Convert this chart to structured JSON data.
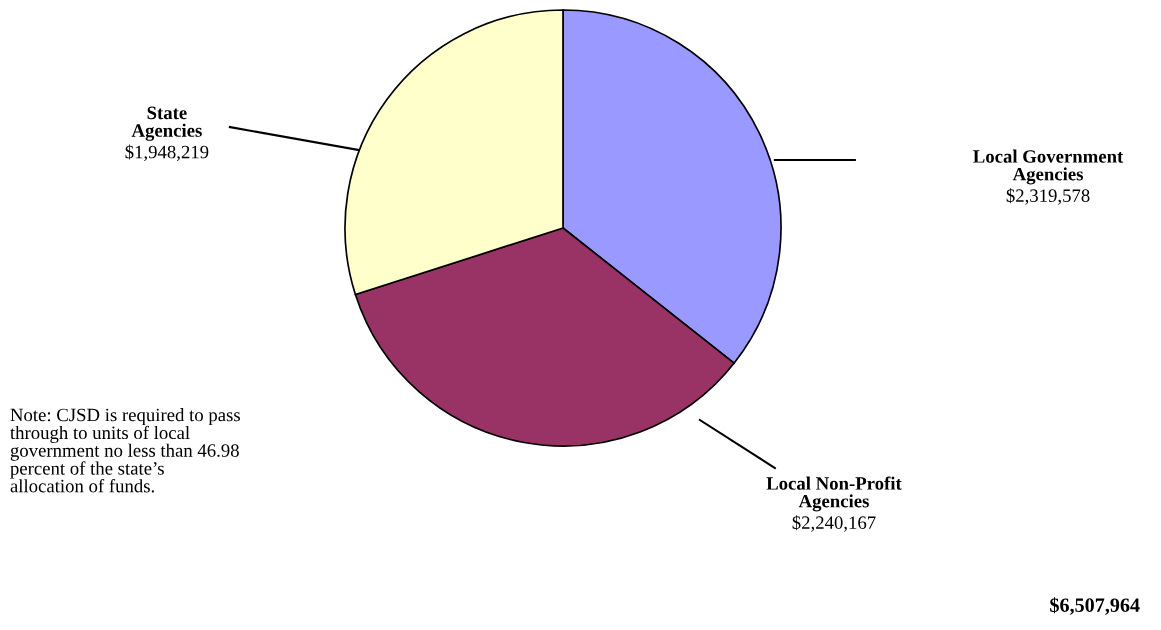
{
  "chart_data": {
    "type": "pie",
    "categories": [
      "Local Government Agencies",
      "Local Non-Profit Agencies",
      "State Agencies"
    ],
    "values": [
      2319578,
      2240167,
      1948219
    ],
    "colors": [
      "#9999ff",
      "#993366",
      "#ffffcc"
    ],
    "value_labels": [
      "$2,319,578",
      "$2,240,167",
      "$1,948,219"
    ],
    "annotations": [
      "Note: CJSD is required to pass through to units of local government no less than 46.98 percent of the state’s allocation of funds.",
      "$6,507,964"
    ],
    "legend": false
  }
}
